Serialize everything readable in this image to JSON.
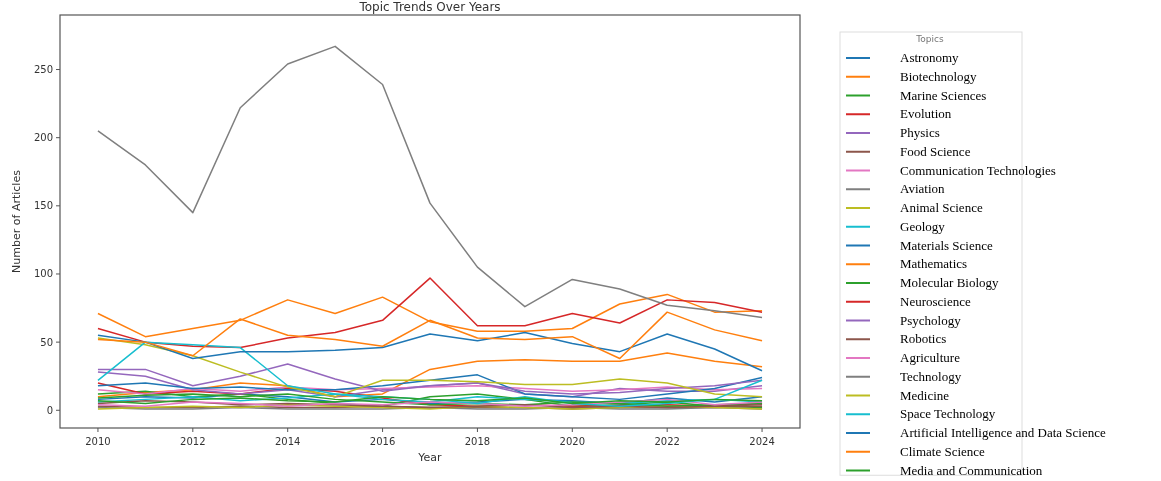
{
  "chart_data": {
    "type": "line",
    "title": "Topic Trends Over Years",
    "xlabel": "Year",
    "ylabel": "Number of Articles",
    "legend_title": "Topics",
    "legend": "right",
    "grid": false,
    "x": [
      2010,
      2011,
      2012,
      2013,
      2014,
      2015,
      2016,
      2017,
      2018,
      2019,
      2020,
      2021,
      2022,
      2023,
      2024
    ],
    "xlim": [
      2009.2,
      2024.8
    ],
    "xticks": [
      2010,
      2012,
      2014,
      2016,
      2018,
      2020,
      2022,
      2024
    ],
    "ylim": [
      -13,
      290
    ],
    "yticks": [
      0,
      50,
      100,
      150,
      200,
      250
    ],
    "series": [
      {
        "name": "Astronomy",
        "color": "#1f77b4",
        "values": [
          8,
          10,
          9,
          12,
          10,
          6,
          8,
          5,
          6,
          8,
          7,
          5,
          9,
          6,
          10
        ]
      },
      {
        "name": "Biotechnology",
        "color": "#ff7f0e",
        "values": [
          10,
          13,
          15,
          20,
          18,
          10,
          12,
          30,
          36,
          37,
          36,
          36,
          42,
          36,
          32
        ]
      },
      {
        "name": "Marine Sciences",
        "color": "#2ca02c",
        "values": [
          12,
          14,
          10,
          12,
          8,
          5,
          3,
          10,
          12,
          8,
          3,
          4,
          6,
          3,
          2
        ]
      },
      {
        "name": "Evolution",
        "color": "#d62728",
        "values": [
          20,
          12,
          14,
          12,
          16,
          14,
          9,
          4,
          3,
          4,
          3,
          3.5,
          4,
          3,
          5
        ]
      },
      {
        "name": "Physics",
        "color": "#9467bd",
        "values": [
          28,
          25,
          15,
          12,
          15,
          10,
          15,
          18,
          20,
          12,
          10,
          16,
          14,
          14,
          18
        ]
      },
      {
        "name": "Food Science",
        "color": "#8c564b",
        "values": [
          3,
          2,
          2,
          3,
          2,
          2,
          3,
          2,
          2,
          2,
          1,
          2,
          2,
          2,
          3
        ]
      },
      {
        "name": "Communication Technologies",
        "color": "#e377c2",
        "values": [
          15,
          12,
          16,
          14,
          17,
          15,
          16,
          17,
          18,
          16,
          14,
          15,
          17,
          15,
          16
        ]
      },
      {
        "name": "Aviation",
        "color": "#7f7f7f",
        "values": [
          2,
          1,
          1,
          2,
          1,
          1,
          1,
          2,
          1,
          1,
          2,
          1,
          1,
          2,
          1
        ]
      },
      {
        "name": "Animal Science",
        "color": "#bcbd22",
        "values": [
          1,
          2,
          3,
          2,
          4,
          3,
          2,
          1,
          3,
          2,
          1,
          2,
          3,
          2,
          1
        ]
      },
      {
        "name": "Geology",
        "color": "#17becf",
        "values": [
          6,
          8,
          10,
          7,
          9,
          12,
          8,
          6,
          10,
          8,
          6,
          5,
          7,
          8,
          6
        ]
      },
      {
        "name": "Materials Science",
        "color": "#1f77b4",
        "values": [
          18,
          20,
          16,
          17,
          15,
          15,
          18,
          22,
          26,
          12,
          10,
          8,
          12,
          16,
          24
        ]
      },
      {
        "name": "Mathematics",
        "color": "#ff7f0e",
        "values": [
          71,
          54,
          60,
          66,
          81,
          71,
          83,
          65,
          58,
          58,
          60,
          78,
          85,
          72,
          73
        ]
      },
      {
        "name": "Molecular Biology",
        "color": "#2ca02c",
        "values": [
          9,
          11,
          12,
          10,
          12,
          8,
          6,
          4,
          5,
          4,
          6,
          5,
          3,
          4,
          5
        ]
      },
      {
        "name": "Neuroscience",
        "color": "#d62728",
        "values": [
          60,
          50,
          47,
          46,
          53,
          57,
          66,
          97,
          62,
          62,
          71,
          64,
          81,
          79,
          72
        ]
      },
      {
        "name": "Psychology",
        "color": "#9467bd",
        "values": [
          30,
          30,
          18,
          25,
          34,
          23,
          14,
          18,
          20,
          14,
          12,
          13,
          16,
          18,
          22
        ]
      },
      {
        "name": "Robotics",
        "color": "#8c564b",
        "values": [
          5,
          7,
          6,
          4,
          5,
          4,
          3,
          2,
          3,
          4,
          2,
          3,
          2,
          3,
          4
        ]
      },
      {
        "name": "Agriculture",
        "color": "#e377c2",
        "values": [
          4,
          3,
          6,
          5,
          3,
          5,
          4,
          6,
          5,
          3,
          4,
          6,
          8,
          4,
          6
        ]
      },
      {
        "name": "Technology",
        "color": "#7f7f7f",
        "values": [
          205,
          180,
          145,
          222,
          254,
          267,
          239,
          152,
          105,
          76,
          96,
          89,
          77,
          73,
          68
        ]
      },
      {
        "name": "Medicine",
        "color": "#bcbd22",
        "values": [
          53,
          48,
          40,
          28,
          17,
          10,
          22,
          22,
          21,
          19,
          19,
          23,
          20,
          12,
          10
        ]
      },
      {
        "name": "Space Technology",
        "color": "#17becf",
        "values": [
          22,
          50,
          48,
          46,
          18,
          12,
          10,
          8,
          5,
          10,
          5,
          3,
          5,
          8,
          22
        ]
      },
      {
        "name": "Artificial Intelligence and Data Science",
        "color": "#1f77b4",
        "values": [
          55,
          50,
          38,
          43,
          43,
          44,
          46,
          56,
          51,
          57,
          49,
          43,
          56,
          45,
          29
        ]
      },
      {
        "name": "Climate Science",
        "color": "#ff7f0e",
        "values": [
          52,
          50,
          40,
          67,
          55,
          52,
          47,
          66,
          53,
          52,
          54,
          38,
          72,
          59,
          51
        ]
      },
      {
        "name": "Media and Communication",
        "color": "#2ca02c",
        "values": [
          7,
          5,
          8,
          9,
          7,
          6,
          10,
          8,
          7,
          9,
          5,
          7,
          6,
          8,
          7
        ]
      }
    ]
  }
}
